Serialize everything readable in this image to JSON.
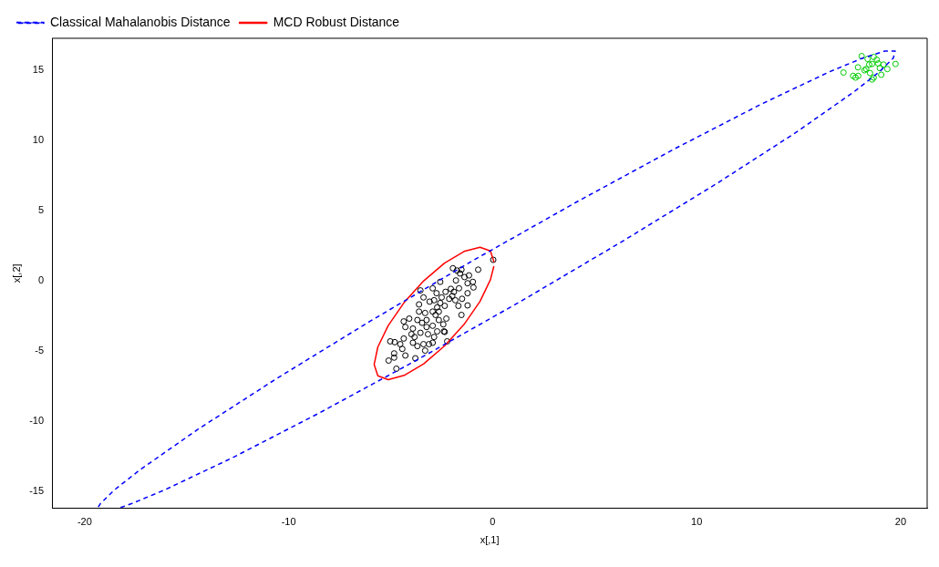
{
  "chart_data": {
    "type": "scatter",
    "xlabel": "x[,1]",
    "ylabel": "x[,2]",
    "xlim": [
      -21.6,
      21.3
    ],
    "ylim": [
      -16.2,
      17.3
    ],
    "xticks": [
      -20,
      -10,
      0,
      10,
      20
    ],
    "yticks": [
      -15,
      -10,
      -5,
      0,
      5,
      10,
      15
    ],
    "grid": false,
    "legend": "top left",
    "series": [
      {
        "type": "scatter",
        "marker": "circle",
        "color": "#000000",
        "x": [
          0.03,
          -0.71,
          -1.95,
          -1.6,
          -1.38,
          -1.16,
          -0.97,
          -2.57,
          -1.8,
          -1.65,
          -2.94,
          -3.54,
          -1.23,
          -0.94,
          -2.31,
          -2.75,
          -1.98,
          -2.13,
          -1.5,
          -1.83,
          -2.5,
          -3.39,
          -3.09,
          -2.57,
          -2.35,
          -2.72,
          -2.94,
          -1.23,
          -1.68,
          -3.61,
          -3.31,
          -2.8,
          -1.53,
          -2.27,
          -2.64,
          -4.09,
          -3.69,
          -3.46,
          -3.24,
          -4.28,
          -3.91,
          -2.94,
          -2.42,
          -2.72,
          -2.39,
          -3.54,
          -3.83,
          -3.17,
          -2.87,
          -4.36,
          -3.91,
          -3.39,
          -2.94,
          -5.02,
          -4.8,
          -4.53,
          -4.43,
          -3.69,
          -3.31,
          -4.83,
          -5.1,
          -4.83,
          -4.28,
          -3.79,
          -4.72,
          -2.23,
          -2.35,
          -4.36,
          -3.61,
          -1.53,
          -1.75,
          -1.23,
          -2.05,
          -2.87,
          -3.24,
          -3.98,
          -3.12,
          -2.64,
          -1.9
        ],
        "values": [
          1.51,
          0.81,
          0.91,
          0.54,
          0.28,
          0.4,
          -0.06,
          -0.06,
          0.04,
          -0.52,
          -0.52,
          -0.67,
          -0.87,
          -0.46,
          -0.77,
          -0.87,
          -1.07,
          -1.27,
          -1.27,
          -1.37,
          -1.17,
          -1.17,
          -1.47,
          -1.57,
          -1.77,
          -1.88,
          -2.18,
          -1.74,
          -1.77,
          -2.18,
          -2.28,
          -2.42,
          -2.42,
          -2.68,
          -2.78,
          -2.68,
          -2.78,
          -2.98,
          -3.28,
          -3.28,
          -3.39,
          -3.19,
          -3.09,
          -3.59,
          -3.59,
          -3.69,
          -3.99,
          -3.79,
          -3.99,
          -4.1,
          -4.4,
          -4.5,
          -4.4,
          -4.3,
          -4.36,
          -4.5,
          -4.84,
          -4.64,
          -4.96,
          -5.16,
          -5.67,
          -5.46,
          -5.31,
          -5.51,
          -6.25,
          -4.3,
          -3.63,
          -2.88,
          -1.67,
          0.81,
          0.75,
          -0.16,
          -0.56,
          -1.37,
          -2.78,
          -3.79,
          -4.5,
          -2.18,
          -0.77
        ]
      },
      {
        "type": "scatter",
        "marker": "circle",
        "color": "#00cd00",
        "x": [
          18.09,
          18.38,
          18.68,
          18.83,
          18.6,
          18.9,
          19.16,
          18.46,
          17.91,
          18.31,
          18.23,
          19.35,
          19.75,
          17.2,
          18.5,
          19.05,
          17.67,
          17.79,
          17.92,
          18.6,
          18.68,
          18.98
        ],
        "values": [
          16.03,
          15.83,
          15.97,
          15.77,
          15.47,
          15.51,
          15.43,
          15.43,
          15.23,
          15.11,
          15.02,
          15.11,
          15.47,
          14.86,
          14.82,
          14.7,
          14.62,
          14.5,
          14.62,
          14.36,
          14.5,
          15.17
        ]
      },
      {
        "type": "line",
        "name": "Classical Mahalanobis Distance",
        "color": "#0000ff",
        "line_style": "dashed",
        "x": [
          -18.24,
          -17.74,
          -16.11,
          -12.76,
          -8.53,
          -3.7,
          1.4,
          6.41,
          11.0,
          14.86,
          17.71,
          18.96,
          19.64,
          19.73,
          19.22,
          18.14,
          16.51,
          13.16,
          8.93,
          4.1,
          -1.0,
          -6.01,
          -10.6,
          -14.46,
          -17.31,
          -18.56,
          -19.24,
          -19.35
        ],
        "values": [
          -16.15,
          -15.89,
          -14.91,
          -12.6,
          -9.43,
          -5.62,
          -1.43,
          2.87,
          6.96,
          10.58,
          13.48,
          14.91,
          15.89,
          16.39,
          16.39,
          15.89,
          14.91,
          12.6,
          9.43,
          5.62,
          1.43,
          -2.87,
          -6.96,
          -10.58,
          -13.48,
          -14.91,
          -15.89,
          -16.15
        ]
      },
      {
        "type": "line",
        "name": "MCD Robust Distance",
        "color": "#ff0000",
        "line_style": "solid",
        "x": [
          0.07,
          -0.11,
          -0.62,
          -1.4,
          -2.36,
          -3.38,
          -4.34,
          -5.12,
          -5.63,
          -5.81,
          -5.63,
          -5.12,
          -4.34,
          -3.38,
          -2.36,
          -1.4,
          -0.62,
          -0.11,
          0.06
        ],
        "values": [
          1.33,
          2.14,
          2.41,
          2.11,
          1.28,
          0.01,
          -1.53,
          -3.17,
          -4.71,
          -5.95,
          -6.76,
          -7.03,
          -6.73,
          -5.9,
          -4.63,
          -3.09,
          -1.45,
          0.09,
          1.06
        ]
      }
    ]
  }
}
